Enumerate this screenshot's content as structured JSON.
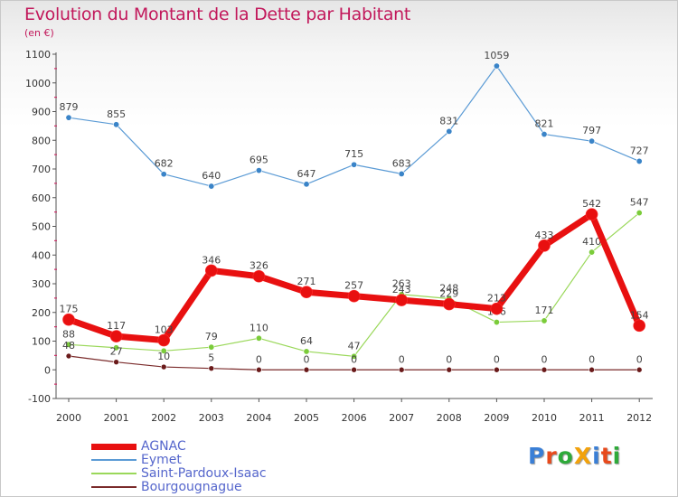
{
  "title": "Evolution du Montant de la Dette par Habitant",
  "subtitle": "(en €)",
  "logo": {
    "text": "ProXiti",
    "colors": [
      "#3a7fd6",
      "#e84a1c",
      "#2eaa3a",
      "#f2a20c",
      "#3a7fd6",
      "#e84a1c",
      "#2eaa3a"
    ]
  },
  "chart_data": {
    "type": "line",
    "x": [
      "2000",
      "2001",
      "2002",
      "2003",
      "2004",
      "2005",
      "2006",
      "2007",
      "2008",
      "2009",
      "2010",
      "2011",
      "2012"
    ],
    "ylim": [
      -100,
      1100
    ],
    "yticks": [
      -100,
      0,
      100,
      200,
      300,
      400,
      500,
      600,
      700,
      800,
      900,
      1000,
      1100
    ],
    "grid": false,
    "legend_position": "bottom-left",
    "series": [
      {
        "name": "Eymet",
        "color": "#5b9bd5",
        "values": [
          879,
          855,
          682,
          640,
          695,
          647,
          715,
          683,
          831,
          1059,
          821,
          797,
          727
        ]
      },
      {
        "name": "Saint-Pardoux-Isaac",
        "color": "#9ad85a",
        "values": [
          88,
          77,
          66,
          79,
          110,
          64,
          47,
          263,
          248,
          166,
          171,
          410,
          547
        ]
      },
      {
        "name": "Bourgougnague",
        "color": "#7a2a2a",
        "values": [
          48,
          27,
          10,
          5,
          0,
          0,
          0,
          0,
          0,
          0,
          0,
          0,
          0
        ]
      },
      {
        "name": "AGNAC",
        "color": "#e81010",
        "values": [
          175,
          117,
          103,
          346,
          326,
          271,
          257,
          243,
          229,
          213,
          433,
          542,
          154
        ]
      }
    ],
    "legend_order": [
      "AGNAC",
      "Eymet",
      "Saint-Pardoux-Isaac",
      "Bourgougnague"
    ]
  }
}
